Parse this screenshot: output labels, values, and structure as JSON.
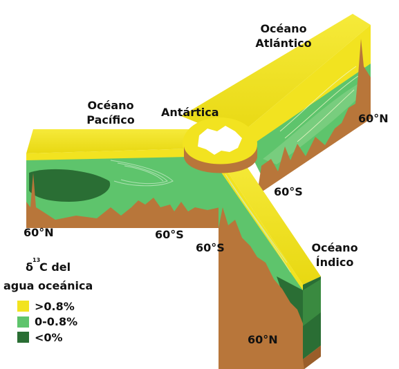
{
  "labels": {
    "pacific": [
      "Océano",
      "Pacífico"
    ],
    "atlantic": [
      "Océano",
      "Atlántico"
    ],
    "indian": [
      "Océano",
      "Índico"
    ],
    "antarctica": "Antártica",
    "lat_pacific_end": "60°N",
    "lat_atlantic_end": "60°N",
    "lat_indian_end": "60°N",
    "lat_pacific_south": "60°S",
    "lat_atlantic_south": "60°S",
    "lat_indian_south": "60°S"
  },
  "legend": {
    "title_delta": "δ",
    "title_superscript": "13",
    "title_rest": "C del",
    "title_line2": "agua oceánica",
    "items": [
      {
        "label": ">0.8%",
        "color": "#f2e320"
      },
      {
        "label": "0-0.8%",
        "color": "#5ec46c"
      },
      {
        "label": "<0%",
        "color": "#2a6e34"
      }
    ]
  },
  "colors": {
    "surface": "#f2e320",
    "mid": "#5ec46c",
    "deep": "#2a6e34",
    "seafloor": "#b8763a",
    "land": "#ffffff"
  }
}
